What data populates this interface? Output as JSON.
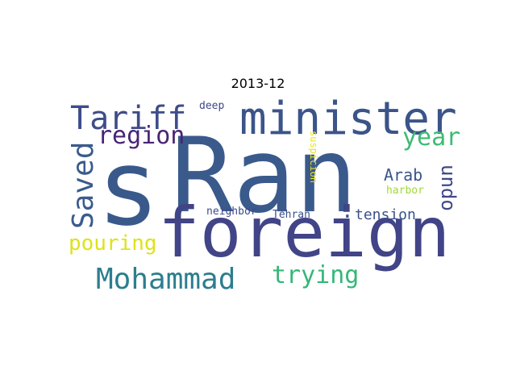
{
  "title": "2013-12",
  "words": [
    {
      "id": "s",
      "text": "s",
      "color": "#39598b"
    },
    {
      "id": "ran",
      "text": "Ran",
      "color": "#3a5a8c"
    },
    {
      "id": "foreign",
      "text": "foreign",
      "color": "#414487"
    },
    {
      "id": "minister",
      "text": "minister",
      "color": "#3b5489"
    },
    {
      "id": "tariff",
      "text": "Tariff",
      "color": "#3e4c8a"
    },
    {
      "id": "saved",
      "text": "Saved",
      "color": "#3b5b8c"
    },
    {
      "id": "region",
      "text": "region",
      "color": "#482475"
    },
    {
      "id": "year",
      "text": "year",
      "color": "#3dbb74"
    },
    {
      "id": "mohammad",
      "text": "Mohammad",
      "color": "#2c7e8e"
    },
    {
      "id": "trying",
      "text": "trying",
      "color": "#35b779"
    },
    {
      "id": "pouring",
      "text": "pouring",
      "color": "#dde318"
    },
    {
      "id": "undo",
      "text": "undo",
      "color": "#3f4889"
    },
    {
      "id": "arab",
      "text": "Arab",
      "color": "#39568c"
    },
    {
      "id": "tension",
      "text": "tension",
      "color": "#3b528b"
    },
    {
      "id": "dot",
      "text": ".",
      "color": "#3b528b"
    },
    {
      "id": "neighbor",
      "text": "neighbor",
      "color": "#3e4a89"
    },
    {
      "id": "tehran",
      "text": "Tehran",
      "color": "#3c4f8a"
    },
    {
      "id": "deep",
      "text": "deep",
      "color": "#3f4788"
    },
    {
      "id": "suspicion",
      "text": "suspicion",
      "color": "#e8e419"
    },
    {
      "id": "harbor",
      "text": "harbor",
      "color": "#a0da39"
    }
  ]
}
